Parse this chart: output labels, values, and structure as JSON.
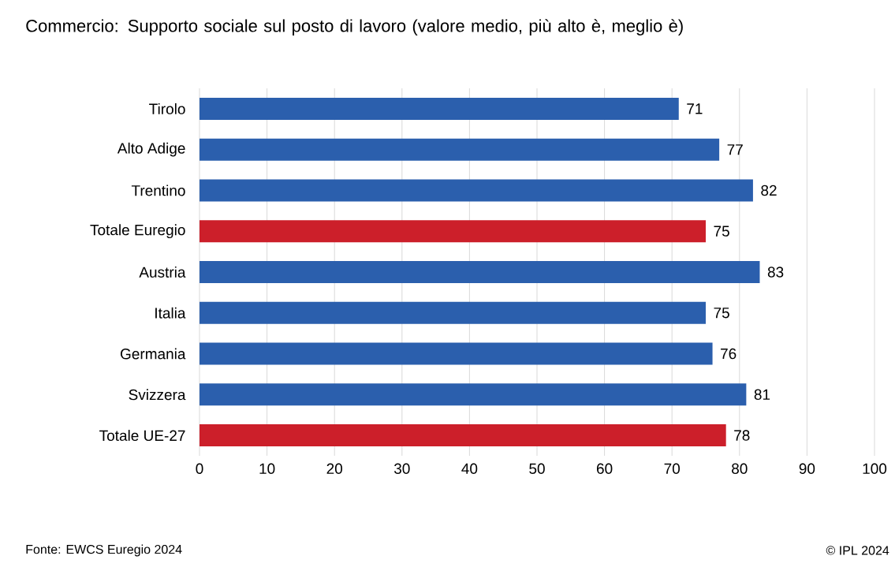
{
  "chart_data": {
    "type": "bar",
    "orientation": "horizontal",
    "title": "Commercio: Supporto sociale sul posto di lavoro (valore medio, più alto è, meglio è)",
    "categories": [
      "Tirolo",
      "Alto Adige",
      "Trentino",
      "Totale Euregio",
      "Austria",
      "Italia",
      "Germania",
      "Svizzera",
      "Totale UE-27"
    ],
    "values": [
      71,
      77,
      82,
      75,
      83,
      75,
      76,
      81,
      78
    ],
    "colors": [
      "#2b5fad",
      "#2b5fad",
      "#2b5fad",
      "#cc1f2a",
      "#2b5fad",
      "#2b5fad",
      "#2b5fad",
      "#2b5fad",
      "#cc1f2a"
    ],
    "xlim": [
      0,
      100
    ],
    "xticks": [
      0,
      10,
      20,
      30,
      40,
      50,
      60,
      70,
      80,
      90,
      100
    ],
    "grid": "x",
    "data_labels": true,
    "annotations": [
      "Fonte: EWCS Euregio 2024",
      "© IPL 2024"
    ]
  }
}
